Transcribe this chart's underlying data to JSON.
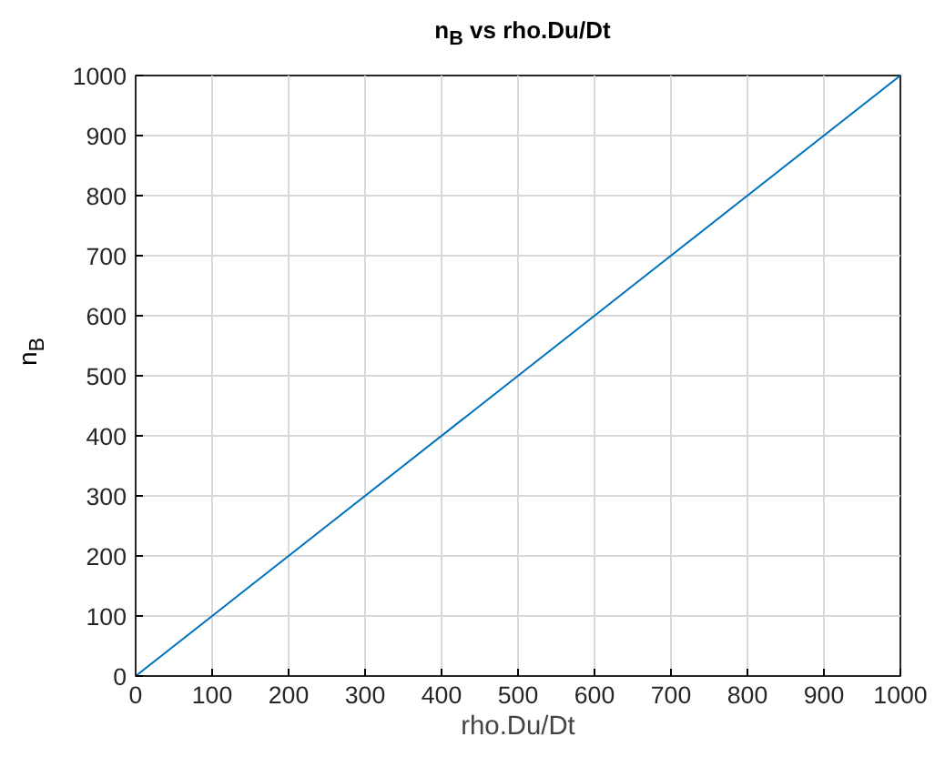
{
  "chart_data": {
    "type": "line",
    "title": "n$_{B}$ vs rho.Du/Dt",
    "xlabel": "rho.Du/Dt",
    "ylabel": "n$_{B}$",
    "x": [
      0,
      1000
    ],
    "series": [
      {
        "color": "#0072bd",
        "values": [
          0,
          1000
        ]
      }
    ],
    "xlim": [
      0,
      1000
    ],
    "ylim": [
      0,
      1000
    ],
    "xticks": [
      0,
      100,
      200,
      300,
      400,
      500,
      600,
      700,
      800,
      900,
      1000
    ],
    "yticks": [
      0,
      100,
      200,
      300,
      400,
      500,
      600,
      700,
      800,
      900,
      1000
    ],
    "grid": true,
    "marker": "none",
    "line_style": "solid"
  }
}
